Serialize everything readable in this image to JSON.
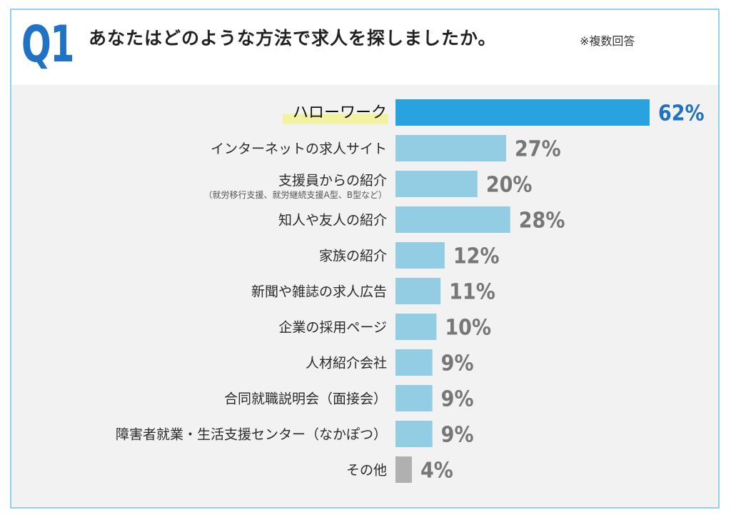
{
  "header": {
    "question_number": "Q1",
    "question": "あなたはどのような方法で求人を探しましたか。",
    "note": "※複数回答"
  },
  "colors": {
    "highlight_bar": "#29a3e0",
    "normal_bar": "#93cde3",
    "other_bar": "#b0b0b0",
    "highlight_marker": "#f3f2a0",
    "highlight_value": "#1f72c4",
    "value_text": "#777777",
    "frame_border": "#8fd3e8",
    "chart_background": "#f2f2f2"
  },
  "chart_data": {
    "type": "bar",
    "orientation": "horizontal",
    "unit": "%",
    "xlim": [
      0,
      62
    ],
    "grid": false,
    "categories": [
      "ハローワーク",
      "インターネットの求人サイト",
      "支援員からの紹介",
      "知人や友人の紹介",
      "家族の紹介",
      "新聞や雑誌の求人広告",
      "企業の採用ページ",
      "人材紹介会社",
      "合同就職説明会（面接会）",
      "障害者就業・生活支援センター（なかぽつ）",
      "その他"
    ],
    "sublabels": [
      "",
      "",
      "（就労移行支援、就労継続支援A型、B型など）",
      "",
      "",
      "",
      "",
      "",
      "",
      "",
      ""
    ],
    "values": [
      62,
      27,
      20,
      28,
      12,
      11,
      10,
      9,
      9,
      9,
      4
    ],
    "value_labels": [
      "62%",
      "27%",
      "20%",
      "28%",
      "12%",
      "11%",
      "10%",
      "9%",
      "9%",
      "9%",
      "4%"
    ],
    "highlight": [
      true,
      false,
      false,
      false,
      false,
      false,
      false,
      false,
      false,
      false,
      false
    ],
    "bar_style": [
      "highlight",
      "normal",
      "normal",
      "normal",
      "normal",
      "normal",
      "normal",
      "normal",
      "normal",
      "normal",
      "other"
    ]
  }
}
